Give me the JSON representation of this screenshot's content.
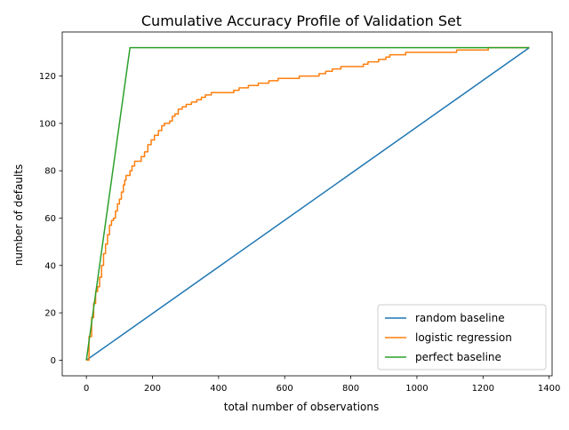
{
  "chart_data": {
    "type": "line",
    "title": "Cumulative Accuracy Profile of Validation Set",
    "xlabel": "total number of observations",
    "ylabel": "number of defaults",
    "xlim": [
      -73,
      1409
    ],
    "ylim": [
      -6.6,
      138.6
    ],
    "xticks": [
      0,
      200,
      400,
      600,
      800,
      1000,
      1200,
      1400
    ],
    "yticks": [
      0,
      20,
      40,
      60,
      80,
      100,
      120
    ],
    "grid": false,
    "legend_position": "lower-right",
    "series": [
      {
        "name": "random baseline",
        "color": "#1f77b4",
        "x": [
          0,
          1340
        ],
        "y": [
          0,
          132
        ]
      },
      {
        "name": "logistic regression",
        "color": "#ff7f0e",
        "step": true,
        "x": [
          0,
          8,
          16,
          22,
          28,
          34,
          40,
          46,
          52,
          58,
          64,
          70,
          76,
          82,
          88,
          94,
          100,
          106,
          112,
          116,
          120,
          126,
          132,
          138,
          146,
          156,
          166,
          176,
          186,
          196,
          206,
          218,
          228,
          236,
          244,
          252,
          260,
          268,
          278,
          290,
          302,
          318,
          334,
          348,
          360,
          378,
          400,
          420,
          446,
          462,
          490,
          520,
          552,
          580,
          612,
          628,
          644,
          664,
          678,
          692,
          704,
          724,
          744,
          770,
          800,
          838,
          852,
          862,
          872,
          884,
          906,
          918,
          936,
          954,
          966,
          986,
          1004,
          1022,
          1048,
          1086,
          1120,
          1144,
          1186,
          1216,
          1250,
          1280,
          1310,
          1340
        ],
        "y": [
          0,
          10,
          18,
          24,
          29,
          31,
          35,
          40,
          45,
          49,
          53,
          57,
          59,
          60,
          63,
          66,
          68,
          71,
          74,
          76,
          78,
          78,
          80,
          82,
          84,
          84,
          86,
          88,
          91,
          93,
          95,
          97,
          99,
          100,
          100,
          101,
          103,
          104,
          106,
          107,
          108,
          109,
          110,
          111,
          112,
          113,
          113,
          113,
          114,
          115,
          116,
          117,
          118,
          119,
          119,
          119,
          120,
          120,
          120,
          120,
          121,
          122,
          123,
          124,
          124,
          125,
          126,
          126,
          126,
          127,
          128,
          129,
          129,
          129,
          130,
          130,
          130,
          130,
          130,
          130,
          131,
          131,
          131,
          132,
          132,
          132,
          132,
          132
        ]
      },
      {
        "name": "perfect baseline",
        "color": "#2ca02c",
        "x": [
          0,
          132,
          1340
        ],
        "y": [
          0,
          132,
          132
        ]
      }
    ]
  }
}
